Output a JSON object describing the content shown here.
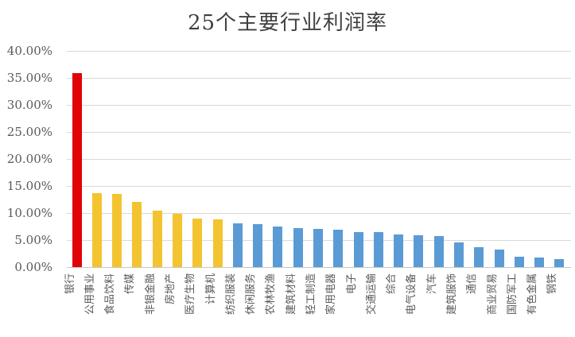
{
  "chart_data": {
    "type": "bar",
    "title": "25个主要行业利润率",
    "xlabel": "",
    "ylabel": "",
    "ylim": [
      0,
      40
    ],
    "grid": true,
    "legend": "none",
    "yticks": [
      "0.00%",
      "5.00%",
      "10.00%",
      "15.00%",
      "20.00%",
      "25.00%",
      "30.00%",
      "35.00%",
      "40.00%"
    ],
    "ytick_values": [
      0,
      5,
      10,
      15,
      20,
      25,
      30,
      35,
      40
    ],
    "categories": [
      "银行",
      "公用事业",
      "食品饮料",
      "传媒",
      "非银金融",
      "房地产",
      "医疗生物",
      "计算机",
      "纺织服装",
      "休闲服务",
      "农林牧渔",
      "建筑材料",
      "轻工制造",
      "家用电器",
      "电子",
      "交通运输",
      "综合",
      "电气设备",
      "汽车",
      "建筑服饰",
      "通信",
      "商业贸易",
      "国防军工",
      "有色金属",
      "钢铁"
    ],
    "values": [
      35.9,
      13.7,
      13.6,
      12.1,
      10.5,
      9.9,
      8.9,
      8.8,
      8.1,
      7.9,
      7.5,
      7.2,
      7.1,
      6.9,
      6.5,
      6.4,
      6.1,
      5.9,
      5.7,
      4.6,
      3.7,
      3.2,
      1.9,
      1.7,
      1.5
    ],
    "bar_color_groups": [
      {
        "label": "highlight-red",
        "color": "#e00308",
        "indices": [
          0
        ]
      },
      {
        "label": "gold",
        "color": "#f3c42f",
        "indices": [
          1,
          2,
          3,
          4,
          5,
          6,
          7
        ]
      },
      {
        "label": "blue",
        "color": "#5b9bd5",
        "indices": [
          8,
          9,
          10,
          11,
          12,
          13,
          14,
          15,
          16,
          17,
          18,
          19,
          20,
          21,
          22,
          23,
          24
        ]
      }
    ],
    "colors": {
      "grid": "#d9d9d9",
      "axis_line": "#c6c6c6",
      "tick_label": "#595959",
      "title": "#3f3f3f",
      "background": "#ffffff"
    }
  }
}
